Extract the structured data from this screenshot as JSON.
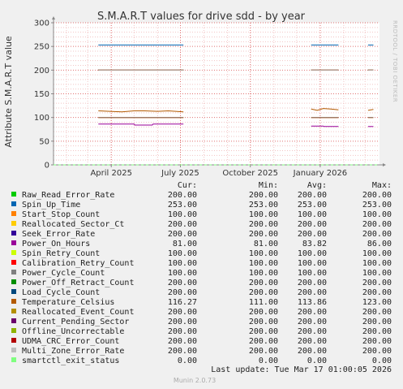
{
  "chart_data": {
    "type": "line",
    "title": "S.M.A.R.T values for drive sdd - by year",
    "ylabel": "Attribute S.M.A.R.T value",
    "side_label": "RRDTOOL / TOBI OETIKER",
    "ylim": [
      0,
      300
    ],
    "yticks": [
      0,
      50,
      100,
      150,
      200,
      250,
      300
    ],
    "xlim": [
      "2025-01-15",
      "2026-03-20"
    ],
    "xticks": [
      {
        "x": "2025-04-01",
        "label": "April 2025"
      },
      {
        "x": "2025-07-01",
        "label": "July 2025"
      },
      {
        "x": "2025-10-01",
        "label": "October 2025"
      },
      {
        "x": "2026-01-01",
        "label": "January 2026"
      }
    ],
    "grid": true,
    "headers": {
      "cur": "Cur:",
      "min": "Min:",
      "avg": "Avg:",
      "max": "Max:"
    },
    "series": [
      {
        "name": "Raw_Read_Error_Rate",
        "color": "#00cc00",
        "cur": "200.00",
        "min": "200.00",
        "avg": "200.00",
        "max": "200.00",
        "segments": [
          {
            "x": [
              "2025-03-15",
              "2025-07-05"
            ],
            "y": [
              200,
              200
            ]
          },
          {
            "x": [
              "2025-12-20",
              "2026-01-25"
            ],
            "y": [
              200,
              200
            ]
          },
          {
            "x": [
              "2026-03-05",
              "2026-03-12"
            ],
            "y": [
              200,
              200
            ]
          }
        ]
      },
      {
        "name": "Spin_Up_Time",
        "color": "#0066b3",
        "cur": "253.00",
        "min": "253.00",
        "avg": "253.00",
        "max": "253.00",
        "segments": [
          {
            "x": [
              "2025-03-15",
              "2025-07-05"
            ],
            "y": [
              253,
              253
            ]
          },
          {
            "x": [
              "2025-12-20",
              "2026-01-25"
            ],
            "y": [
              253,
              253
            ]
          },
          {
            "x": [
              "2026-03-05",
              "2026-03-12"
            ],
            "y": [
              253,
              253
            ]
          }
        ]
      },
      {
        "name": "Start_Stop_Count",
        "color": "#ff8000",
        "cur": "100.00",
        "min": "100.00",
        "avg": "100.00",
        "max": "100.00",
        "segments": [
          {
            "x": [
              "2025-03-15",
              "2025-07-05"
            ],
            "y": [
              100,
              100
            ]
          },
          {
            "x": [
              "2025-12-20",
              "2026-01-25"
            ],
            "y": [
              100,
              100
            ]
          },
          {
            "x": [
              "2026-03-05",
              "2026-03-12"
            ],
            "y": [
              100,
              100
            ]
          }
        ]
      },
      {
        "name": "Reallocated_Sector_Ct",
        "color": "#ffcc00",
        "cur": "200.00",
        "min": "200.00",
        "avg": "200.00",
        "max": "200.00",
        "segments": [
          {
            "x": [
              "2025-03-15",
              "2025-07-05"
            ],
            "y": [
              200,
              200
            ]
          },
          {
            "x": [
              "2025-12-20",
              "2026-01-25"
            ],
            "y": [
              200,
              200
            ]
          },
          {
            "x": [
              "2026-03-05",
              "2026-03-12"
            ],
            "y": [
              200,
              200
            ]
          }
        ]
      },
      {
        "name": "Seek_Error_Rate",
        "color": "#330099",
        "cur": "200.00",
        "min": "200.00",
        "avg": "200.00",
        "max": "200.00",
        "segments": [
          {
            "x": [
              "2025-03-15",
              "2025-07-05"
            ],
            "y": [
              200,
              200
            ]
          },
          {
            "x": [
              "2025-12-20",
              "2026-01-25"
            ],
            "y": [
              200,
              200
            ]
          },
          {
            "x": [
              "2026-03-05",
              "2026-03-12"
            ],
            "y": [
              200,
              200
            ]
          }
        ]
      },
      {
        "name": "Power_On_Hours",
        "color": "#990099",
        "cur": "81.00",
        "min": "81.00",
        "avg": "83.82",
        "max": "86.00",
        "segments": [
          {
            "x": [
              "2025-03-15",
              "2025-05-01",
              "2025-05-02",
              "2025-05-25",
              "2025-05-26",
              "2025-07-05"
            ],
            "y": [
              86,
              86,
              84,
              84,
              86,
              86
            ]
          },
          {
            "x": [
              "2025-12-20",
              "2026-01-05",
              "2026-01-06",
              "2026-01-25"
            ],
            "y": [
              82,
              82,
              81,
              81
            ]
          },
          {
            "x": [
              "2026-03-05",
              "2026-03-12"
            ],
            "y": [
              81,
              81
            ]
          }
        ]
      },
      {
        "name": "Spin_Retry_Count",
        "color": "#ccff00",
        "cur": "100.00",
        "min": "100.00",
        "avg": "100.00",
        "max": "100.00",
        "segments": [
          {
            "x": [
              "2025-03-15",
              "2025-07-05"
            ],
            "y": [
              100,
              100
            ]
          },
          {
            "x": [
              "2025-12-20",
              "2026-01-25"
            ],
            "y": [
              100,
              100
            ]
          },
          {
            "x": [
              "2026-03-05",
              "2026-03-12"
            ],
            "y": [
              100,
              100
            ]
          }
        ]
      },
      {
        "name": "Calibration_Retry_Count",
        "color": "#ff0000",
        "cur": "100.00",
        "min": "100.00",
        "avg": "100.00",
        "max": "100.00",
        "segments": [
          {
            "x": [
              "2025-03-15",
              "2025-07-05"
            ],
            "y": [
              100,
              100
            ]
          },
          {
            "x": [
              "2025-12-20",
              "2026-01-25"
            ],
            "y": [
              100,
              100
            ]
          },
          {
            "x": [
              "2026-03-05",
              "2026-03-12"
            ],
            "y": [
              100,
              100
            ]
          }
        ]
      },
      {
        "name": "Power_Cycle_Count",
        "color": "#808080",
        "cur": "100.00",
        "min": "100.00",
        "avg": "100.00",
        "max": "100.00",
        "segments": [
          {
            "x": [
              "2025-03-15",
              "2025-07-05"
            ],
            "y": [
              100,
              100
            ]
          },
          {
            "x": [
              "2025-12-20",
              "2026-01-25"
            ],
            "y": [
              100,
              100
            ]
          },
          {
            "x": [
              "2026-03-05",
              "2026-03-12"
            ],
            "y": [
              100,
              100
            ]
          }
        ]
      },
      {
        "name": "Power_Off_Retract_Count",
        "color": "#008f00",
        "cur": "200.00",
        "min": "200.00",
        "avg": "200.00",
        "max": "200.00",
        "segments": [
          {
            "x": [
              "2025-03-15",
              "2025-07-05"
            ],
            "y": [
              200,
              200
            ]
          },
          {
            "x": [
              "2025-12-20",
              "2026-01-25"
            ],
            "y": [
              200,
              200
            ]
          },
          {
            "x": [
              "2026-03-05",
              "2026-03-12"
            ],
            "y": [
              200,
              200
            ]
          }
        ]
      },
      {
        "name": "Load_Cycle_Count",
        "color": "#00487d",
        "cur": "200.00",
        "min": "200.00",
        "avg": "200.00",
        "max": "200.00",
        "segments": [
          {
            "x": [
              "2025-03-15",
              "2025-07-05"
            ],
            "y": [
              200,
              200
            ]
          },
          {
            "x": [
              "2025-12-20",
              "2026-01-25"
            ],
            "y": [
              200,
              200
            ]
          },
          {
            "x": [
              "2026-03-05",
              "2026-03-12"
            ],
            "y": [
              200,
              200
            ]
          }
        ]
      },
      {
        "name": "Temperature_Celsius",
        "color": "#b35a00",
        "cur": "116.27",
        "min": "111.00",
        "avg": "113.86",
        "max": "123.00",
        "segments": [
          {
            "x": [
              "2025-03-15",
              "2025-03-30",
              "2025-04-15",
              "2025-05-01",
              "2025-05-15",
              "2025-06-01",
              "2025-06-15",
              "2025-07-05"
            ],
            "y": [
              114,
              113,
              112,
              114,
              114,
              113,
              114,
              112
            ]
          },
          {
            "x": [
              "2025-12-20",
              "2025-12-28",
              "2026-01-05",
              "2026-01-15",
              "2026-01-25"
            ],
            "y": [
              118,
              115,
              119,
              118,
              116
            ]
          },
          {
            "x": [
              "2026-03-05",
              "2026-03-12"
            ],
            "y": [
              115,
              117
            ]
          }
        ]
      },
      {
        "name": "Reallocated_Event_Count",
        "color": "#b38f00",
        "cur": "200.00",
        "min": "200.00",
        "avg": "200.00",
        "max": "200.00",
        "segments": [
          {
            "x": [
              "2025-03-15",
              "2025-07-05"
            ],
            "y": [
              200,
              200
            ]
          },
          {
            "x": [
              "2025-12-20",
              "2026-01-25"
            ],
            "y": [
              200,
              200
            ]
          },
          {
            "x": [
              "2026-03-05",
              "2026-03-12"
            ],
            "y": [
              200,
              200
            ]
          }
        ]
      },
      {
        "name": "Current_Pending_Sector",
        "color": "#6b006b",
        "cur": "200.00",
        "min": "200.00",
        "avg": "200.00",
        "max": "200.00",
        "segments": [
          {
            "x": [
              "2025-03-15",
              "2025-07-05"
            ],
            "y": [
              200,
              200
            ]
          },
          {
            "x": [
              "2025-12-20",
              "2026-01-25"
            ],
            "y": [
              200,
              200
            ]
          },
          {
            "x": [
              "2026-03-05",
              "2026-03-12"
            ],
            "y": [
              200,
              200
            ]
          }
        ]
      },
      {
        "name": "Offline_Uncorrectable",
        "color": "#8fb300",
        "cur": "200.00",
        "min": "200.00",
        "avg": "200.00",
        "max": "200.00",
        "segments": [
          {
            "x": [
              "2025-03-15",
              "2025-07-05"
            ],
            "y": [
              200,
              200
            ]
          },
          {
            "x": [
              "2025-12-20",
              "2026-01-25"
            ],
            "y": [
              200,
              200
            ]
          },
          {
            "x": [
              "2026-03-05",
              "2026-03-12"
            ],
            "y": [
              200,
              200
            ]
          }
        ]
      },
      {
        "name": "UDMA_CRC_Error_Count",
        "color": "#b30000",
        "cur": "200.00",
        "min": "200.00",
        "avg": "200.00",
        "max": "200.00",
        "segments": [
          {
            "x": [
              "2025-03-15",
              "2025-07-05"
            ],
            "y": [
              200,
              200
            ]
          },
          {
            "x": [
              "2025-12-20",
              "2026-01-25"
            ],
            "y": [
              200,
              200
            ]
          },
          {
            "x": [
              "2026-03-05",
              "2026-03-12"
            ],
            "y": [
              200,
              200
            ]
          }
        ]
      },
      {
        "name": "Multi_Zone_Error_Rate",
        "color": "#bebebe",
        "cur": "200.00",
        "min": "200.00",
        "avg": "200.00",
        "max": "200.00",
        "segments": [
          {
            "x": [
              "2025-03-15",
              "2025-07-05"
            ],
            "y": [
              200,
              200
            ]
          },
          {
            "x": [
              "2025-12-20",
              "2026-01-25"
            ],
            "y": [
              200,
              200
            ]
          },
          {
            "x": [
              "2026-03-05",
              "2026-03-12"
            ],
            "y": [
              200,
              200
            ]
          }
        ]
      },
      {
        "name": "smartctl_exit_status",
        "color": "#80ff80",
        "cur": "0.00",
        "min": "0.00",
        "avg": "0.00",
        "max": "0.00",
        "dashed": true,
        "segments": [
          {
            "x": [
              "2025-01-15",
              "2026-03-17"
            ],
            "y": [
              0,
              0
            ]
          }
        ]
      }
    ],
    "last_update": "Last update: Tue Mar 17 01:00:05 2026",
    "footer": "Munin 2.0.73"
  }
}
